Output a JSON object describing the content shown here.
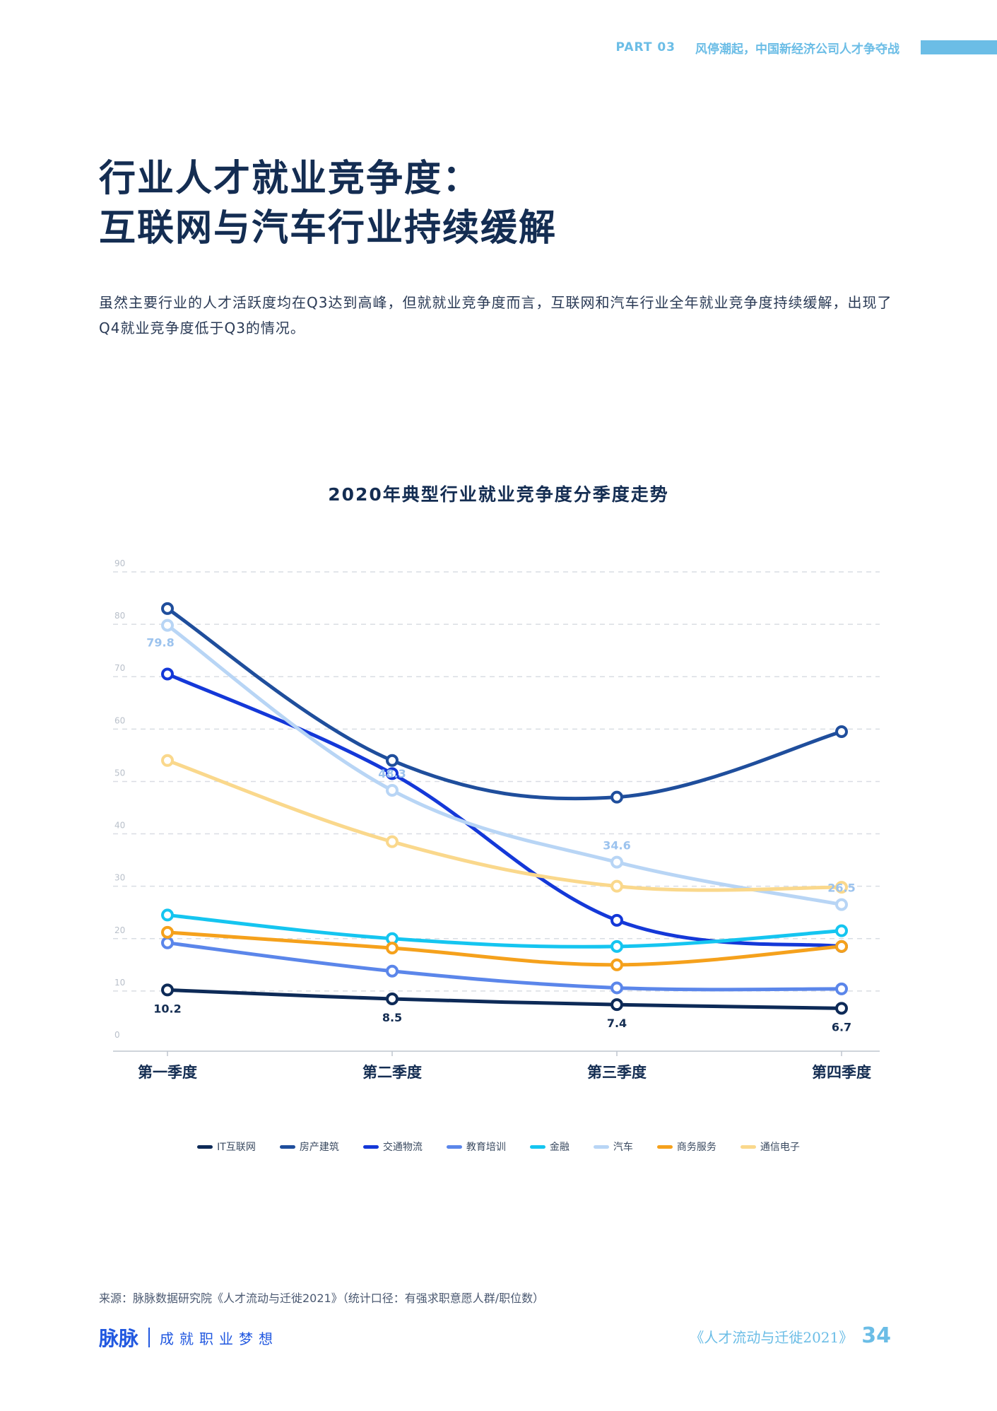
{
  "header": {
    "part": "PART 03",
    "topic": "风停潮起，中国新经济公司人才争夺战"
  },
  "title": {
    "line1": "行业人才就业竞争度：",
    "line2": "互联网与汽车行业持续缓解"
  },
  "lead": "虽然主要行业的人才活跃度均在Q3达到高峰，但就就业竞争度而言，互联网和汽车行业全年就业竞争度持续缓解，出现了Q4就业竞争度低于Q3的情况。",
  "chart_data": {
    "type": "line",
    "title": "2020年典型行业就业竞争度分季度走势",
    "categories": [
      "第一季度",
      "第二季度",
      "第三季度",
      "第四季度"
    ],
    "ylim": [
      0,
      90
    ],
    "yticks": [
      0,
      10,
      20,
      30,
      40,
      50,
      60,
      70,
      80,
      90
    ],
    "grid": true,
    "legend_position": "bottom",
    "series": [
      {
        "name": "IT互联网",
        "color": "#0d2a57",
        "values": [
          10.2,
          8.5,
          7.4,
          6.7
        ],
        "labels": [
          "10.2",
          "8.5",
          "7.4",
          "6.7"
        ],
        "label_pos": "below"
      },
      {
        "name": "房产建筑",
        "color": "#1f4e9c",
        "values": [
          83,
          54,
          47,
          59.5
        ]
      },
      {
        "name": "交通物流",
        "color": "#1438d8",
        "values": [
          70.5,
          51.5,
          23.5,
          18.5
        ]
      },
      {
        "name": "教育培训",
        "color": "#5b86ea",
        "values": [
          19.2,
          13.8,
          10.6,
          10.4
        ]
      },
      {
        "name": "金融",
        "color": "#15c5f0",
        "values": [
          24.5,
          20,
          18.5,
          21.5
        ]
      },
      {
        "name": "汽车",
        "color": "#b8d5f5",
        "values": [
          79.8,
          48.3,
          34.6,
          26.5
        ],
        "labels": [
          "79.8",
          "48.3",
          "34.6",
          "26.5"
        ],
        "label_pos": "above"
      },
      {
        "name": "商务服务",
        "color": "#f5a11c",
        "values": [
          21.2,
          18.2,
          15,
          18.5
        ]
      },
      {
        "name": "通信电子",
        "color": "#fad88c",
        "values": [
          54,
          38.5,
          30,
          29.8
        ]
      }
    ]
  },
  "source": "来源：脉脉数据研究院《人才流动与迁徙2021》（统计口径：有强求职意愿人群/职位数）",
  "footer": {
    "logo": "脉脉",
    "slogan": "成就职业梦想",
    "report": "《人才流动与迁徙2021》",
    "page": "34"
  }
}
